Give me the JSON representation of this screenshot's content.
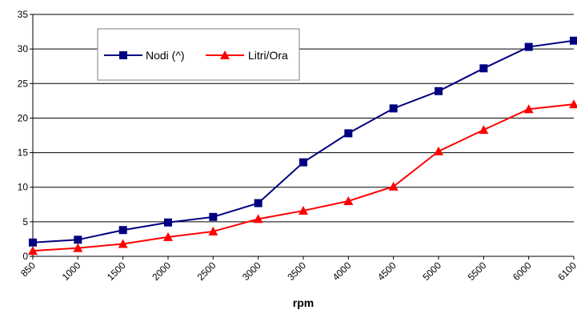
{
  "chart_data": {
    "type": "line",
    "title": "",
    "xlabel": "rpm",
    "ylabel": "",
    "categories": [
      "850",
      "1000",
      "1500",
      "2000",
      "2500",
      "3000",
      "3500",
      "4000",
      "4500",
      "5000",
      "5500",
      "6000",
      "6100"
    ],
    "ylim": [
      0,
      35
    ],
    "yticks": [
      0,
      5,
      10,
      15,
      20,
      25,
      30,
      35
    ],
    "grid": true,
    "legend": "top-left",
    "series": [
      {
        "name": "Nodi (^)",
        "color": "#000080",
        "marker": "square",
        "values": [
          2.0,
          2.4,
          3.8,
          4.9,
          5.7,
          7.7,
          13.6,
          17.8,
          21.4,
          23.9,
          27.2,
          30.3,
          31.2
        ]
      },
      {
        "name": "Litri/Ora",
        "color": "#ff0000",
        "marker": "triangle",
        "values": [
          0.8,
          1.2,
          1.8,
          2.8,
          3.6,
          5.4,
          6.6,
          8.0,
          10.1,
          15.2,
          18.3,
          21.3,
          22.0
        ]
      }
    ]
  }
}
